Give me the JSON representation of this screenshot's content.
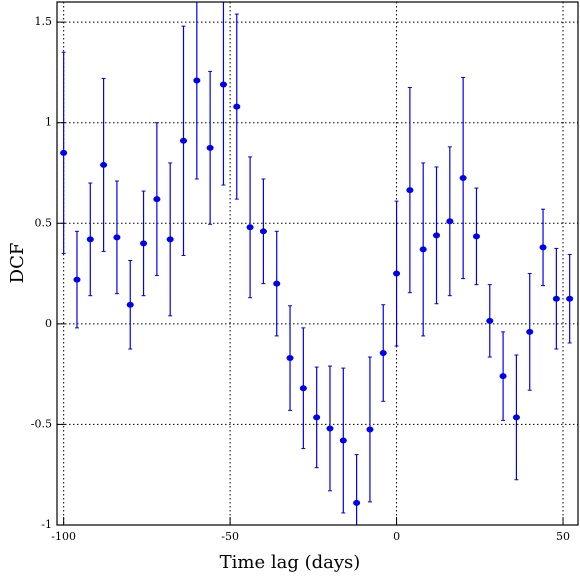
{
  "chart_data": {
    "type": "scatter",
    "xlabel": "Time lag (days)",
    "ylabel": "DCF",
    "xlim": [
      -102,
      54.5
    ],
    "ylim": [
      -1,
      1.6
    ],
    "xticks": [
      -100,
      -50,
      0,
      50
    ],
    "yticks": [
      -1,
      -0.5,
      0,
      0.5,
      1,
      1.5
    ],
    "grid": true,
    "series": [
      {
        "color": "#0000ee",
        "xerr": 1,
        "x": [
          -100,
          -96,
          -92,
          -88,
          -84,
          -80,
          -76,
          -72,
          -68,
          -64,
          -60,
          -56,
          -52,
          -48,
          -44,
          -40,
          -36,
          -32,
          -28,
          -24,
          -20,
          -16,
          -12,
          -8,
          -4,
          0,
          4,
          8,
          12,
          16,
          20,
          24,
          28,
          32,
          36,
          40,
          44,
          48,
          52
        ],
        "values": [
          0.85,
          0.22,
          0.42,
          0.79,
          0.43,
          0.095,
          0.4,
          0.62,
          0.42,
          0.91,
          1.21,
          0.875,
          1.19,
          1.08,
          0.48,
          0.46,
          0.2,
          -0.17,
          -0.32,
          -0.465,
          -0.52,
          -0.58,
          -0.89,
          -0.525,
          -0.145,
          0.25,
          0.665,
          0.37,
          0.44,
          0.51,
          0.725,
          0.435,
          0.015,
          -0.26,
          -0.465,
          -0.04,
          0.38,
          0.125,
          0.125
        ],
        "errors": [
          0.5,
          0.24,
          0.28,
          0.43,
          0.28,
          0.22,
          0.26,
          0.38,
          0.38,
          0.57,
          0.49,
          0.38,
          0.5,
          0.46,
          0.35,
          0.26,
          0.26,
          0.26,
          0.3,
          0.25,
          0.31,
          0.36,
          0.24,
          0.36,
          0.24,
          0.36,
          0.51,
          0.43,
          0.34,
          0.37,
          0.5,
          0.24,
          0.18,
          0.22,
          0.31,
          0.29,
          0.19,
          0.25,
          0.22
        ]
      }
    ]
  }
}
